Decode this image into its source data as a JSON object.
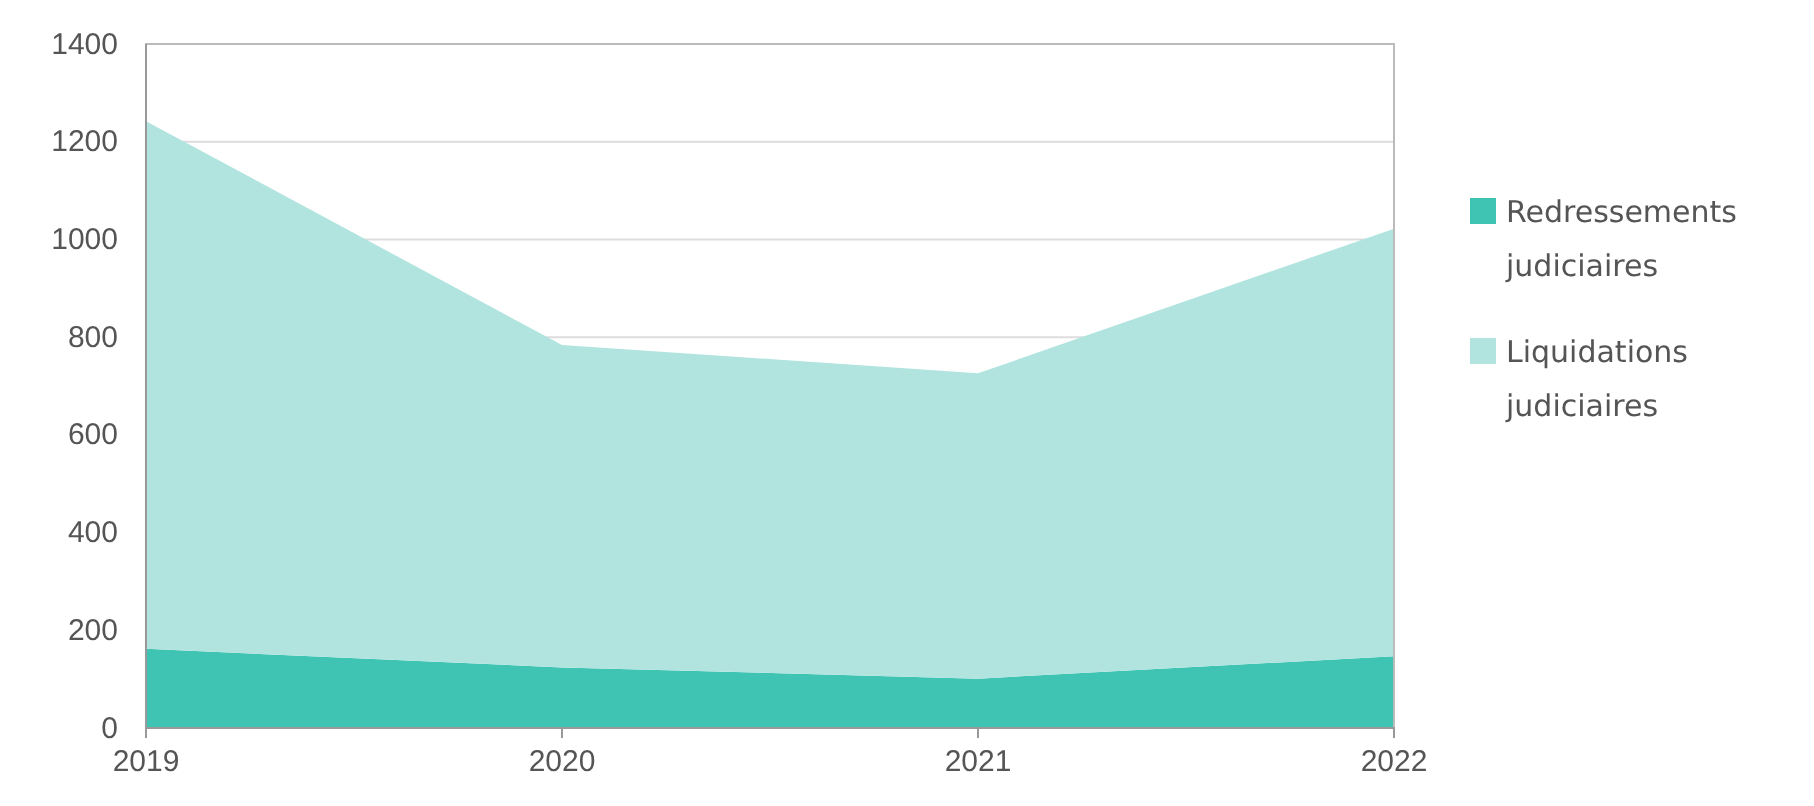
{
  "chart_data": {
    "type": "area",
    "stacked": true,
    "x": [
      2019,
      2020,
      2021,
      2022
    ],
    "xlim": [
      2019,
      2022
    ],
    "xticks": [
      2019,
      2020,
      2021,
      2022
    ],
    "ylim": [
      0,
      1400
    ],
    "yticks": [
      0,
      200,
      400,
      600,
      800,
      1000,
      1200,
      1400
    ],
    "grid": "y",
    "legend": "right",
    "series": [
      {
        "name": "Redressements judiciaires",
        "color": "#3fc4b4",
        "values": [
          162,
          124,
          101,
          147
        ]
      },
      {
        "name": "Liquidations judiciaires",
        "color": "#b2e4df",
        "values": [
          1080,
          660,
          625,
          875
        ]
      }
    ]
  }
}
